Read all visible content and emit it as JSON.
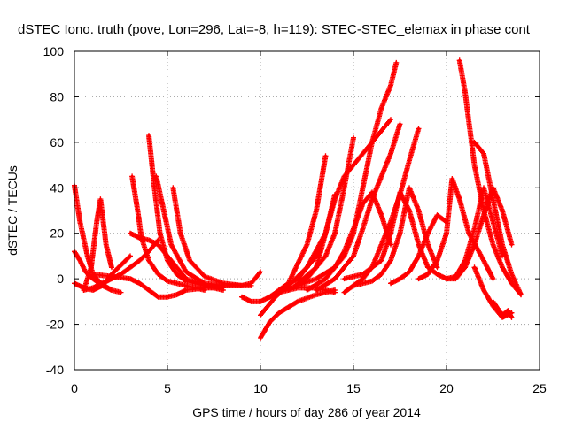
{
  "chart_data": {
    "type": "scatter",
    "title": "dSTEC Iono. truth (pove, Lon=296, Lat=-8, h=119): STEC-STEC_elemax in phase cont",
    "xlabel": "GPS time / hours of day 286 of year 2014",
    "ylabel": "dSTEC  / TECUs",
    "xlim": [
      0,
      25
    ],
    "ylim": [
      -40,
      100
    ],
    "xticks": [
      0,
      5,
      10,
      15,
      20,
      25
    ],
    "yticks": [
      -40,
      -20,
      0,
      20,
      40,
      60,
      80,
      100
    ],
    "grid": true,
    "marker": "+",
    "color": "#ff0000",
    "series": [
      {
        "x": [
          0.0,
          0.3,
          0.7,
          1.0,
          1.3,
          1.6,
          2.0
        ],
        "y": [
          41,
          25,
          10,
          2,
          -1,
          -3,
          -5
        ]
      },
      {
        "x": [
          0.0,
          0.3,
          0.6,
          1.0,
          1.5,
          2.0,
          2.5
        ],
        "y": [
          12,
          8,
          3,
          0,
          -3,
          -5,
          -6
        ]
      },
      {
        "x": [
          0.5,
          0.9,
          1.2,
          1.4,
          1.7,
          2.0
        ],
        "y": [
          -5,
          5,
          25,
          35,
          15,
          5
        ]
      },
      {
        "x": [
          0.0,
          0.5,
          1.0,
          1.5,
          2.0,
          2.5,
          3.0
        ],
        "y": [
          -2,
          -4,
          -5,
          -3,
          2,
          6,
          10
        ]
      },
      {
        "x": [
          0.5,
          1.0,
          1.5,
          2.0,
          2.5,
          3.0,
          3.5,
          4.0,
          4.5
        ],
        "y": [
          -5,
          -4,
          -2,
          0,
          2,
          5,
          8,
          12,
          17
        ]
      },
      {
        "x": [
          1.0,
          2.0,
          3.0,
          3.5,
          4.0,
          4.5,
          5.0,
          5.5,
          6.0,
          7.0,
          8.0
        ],
        "y": [
          2,
          1,
          0,
          -2,
          -5,
          -8,
          -8,
          -7,
          -5,
          -4,
          -4
        ]
      },
      {
        "x": [
          3.0,
          3.5,
          4.0,
          4.5,
          5.0,
          5.5,
          6.0,
          7.0,
          8.0
        ],
        "y": [
          20,
          18,
          17,
          15,
          10,
          5,
          0,
          -3,
          -5
        ]
      },
      {
        "x": [
          3.1,
          3.4,
          3.6,
          4.0,
          4.5,
          5.0,
          6.0,
          7.0
        ],
        "y": [
          45,
          30,
          18,
          8,
          2,
          -1,
          -3,
          -5
        ]
      },
      {
        "x": [
          4.0,
          4.3,
          4.6,
          5.0,
          5.5,
          6.0,
          7.0,
          8.0
        ],
        "y": [
          63,
          40,
          20,
          8,
          2,
          -1,
          -3,
          -4
        ]
      },
      {
        "x": [
          4.4,
          4.8,
          5.2,
          6.0,
          7.0,
          8.0,
          9.0
        ],
        "y": [
          45,
          30,
          15,
          3,
          -2,
          -3,
          -3
        ]
      },
      {
        "x": [
          5.3,
          5.7,
          6.2,
          7.0,
          8.0,
          9.0,
          9.5
        ],
        "y": [
          40,
          20,
          8,
          1,
          -2,
          -3,
          -3
        ]
      },
      {
        "x": [
          7.0,
          8.0,
          9.0,
          9.5,
          10.0
        ],
        "y": [
          -3,
          -3,
          -3,
          -2,
          3
        ]
      },
      {
        "x": [
          9.0,
          9.5,
          10.0,
          10.5,
          11.0,
          12.0,
          13.0,
          14.0
        ],
        "y": [
          -8,
          -10,
          -10,
          -8,
          -6,
          -4,
          -4,
          -6
        ]
      },
      {
        "x": [
          10.0,
          10.5,
          11.0,
          12.0,
          13.0,
          14.0
        ],
        "y": [
          -26,
          -19,
          -15,
          -10,
          -7,
          -5
        ]
      },
      {
        "x": [
          10.0,
          10.8,
          11.5,
          12.5,
          13.5
        ],
        "y": [
          -16,
          -8,
          -3,
          5,
          20
        ]
      },
      {
        "x": [
          10.5,
          11.5,
          12.5,
          13.0,
          13.5
        ],
        "y": [
          -8,
          -2,
          15,
          30,
          54
        ]
      },
      {
        "x": [
          11.0,
          12.0,
          13.0,
          13.5,
          14.0
        ],
        "y": [
          -5,
          0,
          10,
          20,
          37
        ]
      },
      {
        "x": [
          11.5,
          12.5,
          13.5,
          14.0,
          14.5,
          15.0
        ],
        "y": [
          -5,
          0,
          10,
          20,
          40,
          62
        ]
      },
      {
        "x": [
          12.0,
          13.0,
          13.5,
          14.0,
          14.5,
          15.0,
          15.5,
          16.0,
          17.0
        ],
        "y": [
          -2,
          5,
          20,
          35,
          45,
          50,
          55,
          60,
          70
        ]
      },
      {
        "x": [
          12.5,
          13.5,
          14.5,
          15.0,
          15.5,
          16.0,
          16.5,
          17.0,
          17.3
        ],
        "y": [
          -5,
          0,
          10,
          20,
          40,
          60,
          75,
          85,
          95
        ]
      },
      {
        "x": [
          13.0,
          14.0,
          15.0,
          15.5,
          16.0,
          16.5,
          17.0,
          17.5
        ],
        "y": [
          -5,
          0,
          10,
          22,
          35,
          45,
          55,
          68
        ]
      },
      {
        "x": [
          14.5,
          15.0,
          15.5,
          16.0,
          16.5,
          17.0,
          17.5,
          18.0,
          18.5
        ],
        "y": [
          -6,
          -3,
          0,
          5,
          15,
          25,
          37,
          52,
          66
        ]
      },
      {
        "x": [
          12.0,
          13.0,
          14.0,
          14.5,
          15.0,
          15.5,
          16.0,
          16.5,
          17.0
        ],
        "y": [
          -3,
          0,
          5,
          12,
          22,
          33,
          38,
          28,
          15
        ]
      },
      {
        "x": [
          14.5,
          15.5,
          16.5,
          17.0,
          17.5,
          18.0,
          18.5,
          19.0
        ],
        "y": [
          0,
          2,
          8,
          20,
          38,
          30,
          15,
          5
        ]
      },
      {
        "x": [
          15.0,
          16.0,
          16.5,
          17.0,
          17.5,
          18.0,
          18.5,
          19.0,
          19.5
        ],
        "y": [
          -3,
          -1,
          2,
          8,
          20,
          40,
          30,
          15,
          5
        ]
      },
      {
        "x": [
          17.0,
          17.5,
          18.0,
          18.5,
          19.0,
          19.5,
          20.0
        ],
        "y": [
          -2,
          0,
          3,
          10,
          20,
          28,
          25
        ]
      },
      {
        "x": [
          18.5,
          19.0,
          19.5,
          20.0,
          20.3,
          20.7,
          21.2,
          22.0,
          22.5
        ],
        "y": [
          0,
          2,
          8,
          20,
          44,
          35,
          20,
          8,
          0
        ]
      },
      {
        "x": [
          19.0,
          19.5,
          20.0,
          20.5,
          21.0,
          21.5,
          22.0,
          22.5,
          23.0
        ],
        "y": [
          5,
          2,
          0,
          1,
          8,
          22,
          40,
          25,
          10
        ]
      },
      {
        "x": [
          20.0,
          20.5,
          21.0,
          21.5,
          22.0,
          22.5,
          23.0,
          23.5
        ],
        "y": [
          0,
          0,
          5,
          15,
          28,
          40,
          30,
          15
        ]
      },
      {
        "x": [
          20.7,
          21.0,
          21.5,
          22.0,
          22.5,
          23.0,
          23.5,
          24.0
        ],
        "y": [
          96,
          82,
          50,
          30,
          15,
          5,
          -2,
          -7
        ]
      },
      {
        "x": [
          21.5,
          22.0,
          22.5,
          23.0,
          23.5,
          24.0
        ],
        "y": [
          60,
          55,
          35,
          15,
          2,
          -7
        ]
      },
      {
        "x": [
          21.5,
          22.0,
          22.5,
          23.0,
          23.5
        ],
        "y": [
          5,
          -5,
          -12,
          -17,
          -15
        ]
      },
      {
        "x": [
          22.5,
          23.0,
          23.3,
          23.5
        ],
        "y": [
          -10,
          -16,
          -14,
          -17
        ]
      }
    ]
  }
}
